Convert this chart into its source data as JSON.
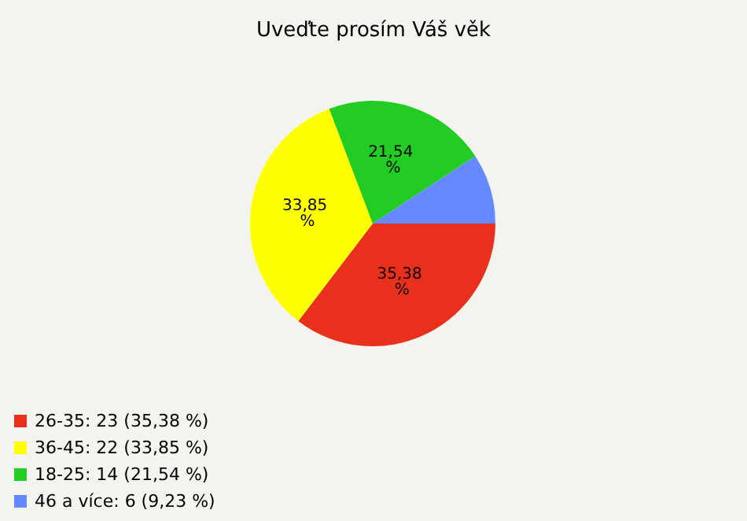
{
  "chart_data": {
    "type": "pie",
    "title": "Uveďte prosím Váš věk",
    "categories": [
      "26-35: 23 (35,38 %)",
      "36-45: 22 (33,85 %)",
      "18-25: 14 (21,54 %)",
      "46 a více: 6 (9,23 %)"
    ],
    "values": [
      35.38,
      33.85,
      21.54,
      9.23
    ],
    "colors": [
      "#e8301c",
      "#ffff00",
      "#22cc22",
      "#6688ff"
    ],
    "value_labels": [
      "35,38 %",
      "33,85 %",
      "21,54 %",
      null
    ],
    "legend": "bottom left"
  }
}
